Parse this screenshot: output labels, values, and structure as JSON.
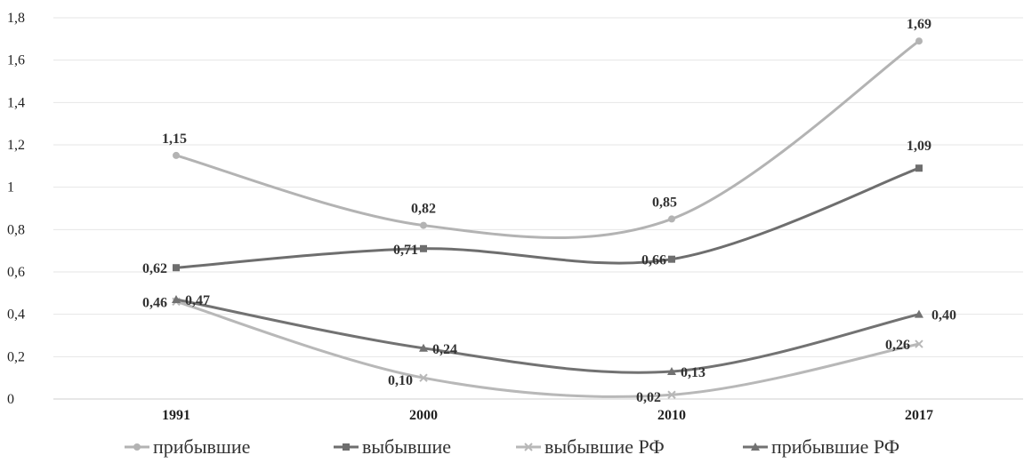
{
  "chart_data": {
    "type": "line",
    "categories": [
      "1991",
      "2000",
      "2010",
      "2017"
    ],
    "ylim": [
      0,
      1.8
    ],
    "yticks": [
      "0",
      "0,2",
      "0,4",
      "0,6",
      "0,8",
      "1",
      "1,2",
      "1,4",
      "1,6",
      "1,8"
    ],
    "grid": true,
    "legend_position": "bottom",
    "series": [
      {
        "name": "прибывшие",
        "values": [
          1.15,
          0.82,
          0.85,
          1.69
        ],
        "labels": [
          "1,15",
          "0,82",
          "0,85",
          "1,69"
        ],
        "marker": "circle",
        "color": "#b3b3b3"
      },
      {
        "name": "выбывшие",
        "values": [
          0.62,
          0.71,
          0.66,
          1.09
        ],
        "labels": [
          "0,62",
          "0,71",
          "0,66",
          "1,09"
        ],
        "marker": "square",
        "color": "#6e6e6e"
      },
      {
        "name": "выбывшие РФ",
        "values": [
          0.46,
          0.1,
          0.02,
          0.26
        ],
        "labels": [
          "0,46",
          "0,10",
          "0,02",
          "0,26"
        ],
        "marker": "x",
        "color": "#b8b8b8"
      },
      {
        "name": "прибывшие РФ",
        "values": [
          0.47,
          0.24,
          0.13,
          0.4
        ],
        "labels": [
          "0,47",
          "0,24",
          "0,13",
          "0,40"
        ],
        "marker": "triangle",
        "color": "#727272"
      }
    ]
  }
}
